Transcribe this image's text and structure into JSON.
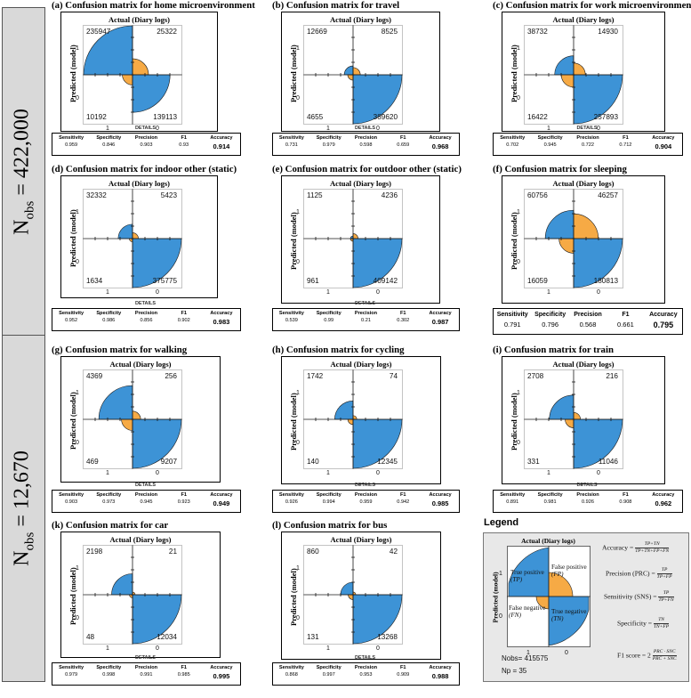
{
  "colors": {
    "blue": "#3d93d6",
    "orange": "#f6aa45",
    "gray": "#d9d9d9"
  },
  "group_labels": [
    {
      "prefix": "N",
      "sub": "obs",
      "suffix": " = 422,000"
    },
    {
      "prefix": "N",
      "sub": "obs",
      "suffix": " = 12,670"
    }
  ],
  "labels": {
    "actual": "Actual (Diary logs)",
    "predicted": "Predicted (model)",
    "tick1": "1",
    "tick0": "0",
    "details": "DETAILS",
    "metric_names": [
      "Sensitivity",
      "Specificity",
      "Precision",
      "F1",
      "Accuracy"
    ]
  },
  "chart_data": [
    {
      "type": "confusion_matrix",
      "title": "(a) Confusion matrix for home microenvironment",
      "tp": 235947,
      "fp": 25322,
      "fn": 10192,
      "tn": 139113,
      "metrics": [
        "0.959",
        "0.846",
        "0.903",
        "0.93",
        "0.914"
      ]
    },
    {
      "type": "confusion_matrix",
      "title": "(b) Confusion matrix for travel",
      "tp": 12669,
      "fp": 8525,
      "fn": 4655,
      "tn": 389620,
      "metrics": [
        "0.731",
        "0.979",
        "0.598",
        "0.659",
        "0.968"
      ]
    },
    {
      "type": "confusion_matrix",
      "title": "(c) Confusion matrix for work microenvironment",
      "tp": 38732,
      "fp": 14930,
      "fn": 16422,
      "tn": 257893,
      "metrics": [
        "0.702",
        "0.945",
        "0.722",
        "0.712",
        "0.904"
      ]
    },
    {
      "type": "confusion_matrix",
      "title": "(d) Confusion matrix for indoor other (static)",
      "tp": 32332,
      "fp": 5423,
      "fn": 1634,
      "tn": 375775,
      "metrics": [
        "0.952",
        "0.986",
        "0.856",
        "0.902",
        "0.983"
      ]
    },
    {
      "type": "confusion_matrix",
      "title": "(e) Confusion matrix for outdoor other (static)",
      "tp": 1125,
      "fp": 4236,
      "fn": 961,
      "tn": 409142,
      "metrics": [
        "0.539",
        "0.99",
        "0.21",
        "0.302",
        "0.987"
      ]
    },
    {
      "type": "confusion_matrix",
      "title": "(f) Confusion matrix for sleeping",
      "tp": 60756,
      "fp": 46257,
      "fn": 16059,
      "tn": 180813,
      "metrics": [
        "0.791",
        "0.796",
        "0.568",
        "0.661",
        "0.795"
      ]
    },
    {
      "type": "confusion_matrix",
      "title": "(g) Confusion matrix for walking",
      "tp": 4369,
      "fp": 256,
      "fn": 469,
      "tn": 9207,
      "metrics": [
        "0.903",
        "0.973",
        "0.945",
        "0.923",
        "0.949"
      ]
    },
    {
      "type": "confusion_matrix",
      "title": "(h) Confusion matrix for cycling",
      "tp": 1742,
      "fp": 74,
      "fn": 140,
      "tn": 12345,
      "metrics": [
        "0.926",
        "0.994",
        "0.959",
        "0.942",
        "0.985"
      ]
    },
    {
      "type": "confusion_matrix",
      "title": "(i) Confusion matrix for train",
      "tp": 2708,
      "fp": 216,
      "fn": 331,
      "tn": 11046,
      "metrics": [
        "0.891",
        "0.981",
        "0.926",
        "0.908",
        "0.962"
      ]
    },
    {
      "type": "confusion_matrix",
      "title": "(k) Confusion matrix for car",
      "tp": 2198,
      "fp": 21,
      "fn": 48,
      "tn": 12034,
      "metrics": [
        "0.979",
        "0.998",
        "0.991",
        "0.985",
        "0.995"
      ]
    },
    {
      "type": "confusion_matrix",
      "title": "(l) Confusion matrix for bus",
      "tp": 860,
      "fp": 42,
      "fn": 131,
      "tn": 13268,
      "metrics": [
        "0.868",
        "0.997",
        "0.953",
        "0.909",
        "0.988"
      ]
    }
  ],
  "legend": {
    "title": "Legend",
    "cells": {
      "tp_label": "True positive",
      "tp_abbr": "(TP)",
      "fp_label": "False positive",
      "fp_abbr": "(FP)",
      "fn_label": "False negative",
      "fn_abbr": "(FN)",
      "tn_label": "True negative",
      "tn_abbr": "(TN)"
    },
    "formulas": {
      "accuracy_name": "Accuracy =",
      "accuracy_num": "TP+TN",
      "accuracy_den": "TP+TN+FP+FN",
      "precision_name": "Precision (PRC) =",
      "precision_num": "TP",
      "precision_den": "TP+FP",
      "sensitivity_name": "Sensitivity (SNS) =",
      "sensitivity_num": "TP",
      "sensitivity_den": "TP+FN",
      "specificity_name": "Specificity =",
      "specificity_num": "TN",
      "specificity_den": "TN+FP",
      "f1_name": "F1 score =",
      "f1_coef": "2",
      "f1_num": "PRC · SNC",
      "f1_den": "PRC + SNC"
    },
    "nobs": "Nobs= 415575",
    "np": "Np = 35"
  }
}
